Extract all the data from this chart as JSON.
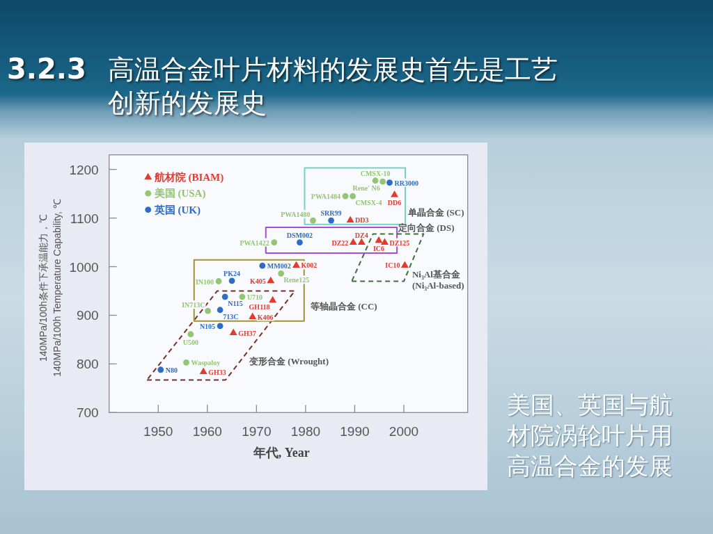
{
  "chart_data": {
    "type": "scatter",
    "title": "3.2.3 高温合金叶片材料的发展史首先是工艺创新的发展史",
    "xlabel": "年代, Year",
    "ylabel": "140MPa/100h条件下承温能力，℃\n140MPa/100h Temperature Capability, ℃",
    "xlim": [
      1940,
      2013
    ],
    "xticks": [
      1950,
      1960,
      1970,
      1980,
      1990,
      2000
    ],
    "ylim": [
      700,
      1230
    ],
    "yticks": [
      700,
      800,
      900,
      1000,
      1100,
      1200
    ],
    "legend": "top left",
    "series": [
      {
        "name": "航材院 (BIAM)",
        "color": "#e23b2e",
        "marker": "triangle",
        "x": [
          1959.2,
          1965.3,
          1969.2,
          1973.3,
          1972.9,
          1978.1,
          1989.7,
          1991.4,
          1994.9,
          1996.1,
          2000.2,
          1989.1,
          1998.1
        ],
        "values": [
          784,
          864,
          897,
          931,
          971,
          1003,
          1050,
          1050,
          1054,
          1050,
          1003,
          1096,
          1148
        ]
      },
      {
        "name": "美国 (USA)",
        "color": "#93c572",
        "marker": "circle",
        "x": [
          1955.7,
          1956.6,
          1960.1,
          1962.3,
          1967.1,
          1975.0,
          1973.6,
          1981.5,
          1988.1,
          1989.6,
          1994.2,
          1995.7
        ],
        "values": [
          803,
          861,
          909,
          970,
          938,
          986,
          1050,
          1095,
          1145,
          1145,
          1177,
          1175
        ]
      },
      {
        "name": "英国 (UK)",
        "color": "#2f6cc4",
        "marker": "circle",
        "x": [
          1950.5,
          1962.6,
          1962.6,
          1963.6,
          1965.0,
          1971.2,
          1978.8,
          1985.2,
          1997.1
        ],
        "values": [
          788,
          878,
          911,
          938,
          971,
          1002,
          1050,
          1095,
          1173
        ]
      }
    ],
    "annotations": [
      "变形合金 (Wrought)",
      "等轴晶合金 (CC)",
      "定向合金 (DS)",
      "单晶合金 (SC)",
      "Ni₃Al基合金 (Ni₃Al-based)",
      "美国、英国与航材院涡轮叶片用高温合金的发展",
      {
        "text": "GH33",
        "x": 1959.2,
        "y": 784
      },
      {
        "text": "GH37",
        "x": 1965.3,
        "y": 864
      },
      {
        "text": "K406",
        "x": 1969.2,
        "y": 897
      },
      {
        "text": "GH118",
        "x": 1973.3,
        "y": 931
      },
      {
        "text": "K405",
        "x": 1972.9,
        "y": 971
      },
      {
        "text": "K002",
        "x": 1978.1,
        "y": 1003
      },
      {
        "text": "DZ22",
        "x": 1989.7,
        "y": 1050
      },
      {
        "text": "DZ4",
        "x": 1991.4,
        "y": 1050
      },
      {
        "text": "IC6",
        "x": 1994.9,
        "y": 1054
      },
      {
        "text": "DZ125",
        "x": 1996.1,
        "y": 1050
      },
      {
        "text": "IC10",
        "x": 2000.2,
        "y": 1003
      },
      {
        "text": "DD3",
        "x": 1989.1,
        "y": 1096
      },
      {
        "text": "DD6",
        "x": 1998.1,
        "y": 1148
      },
      {
        "text": "Waspaloy",
        "x": 1955.7,
        "y": 803
      },
      {
        "text": "U500",
        "x": 1956.6,
        "y": 861
      },
      {
        "text": "IN713C",
        "x": 1960.1,
        "y": 909
      },
      {
        "text": "IN100",
        "x": 1962.3,
        "y": 970
      },
      {
        "text": "U710",
        "x": 1967.1,
        "y": 938
      },
      {
        "text": "Rene125",
        "x": 1975.0,
        "y": 986
      },
      {
        "text": "PWA1422",
        "x": 1973.6,
        "y": 1050
      },
      {
        "text": "PWA1480",
        "x": 1981.5,
        "y": 1095
      },
      {
        "text": "PWA1484",
        "x": 1988.1,
        "y": 1145
      },
      {
        "text": "CMSX-4",
        "x": 1989.6,
        "y": 1145
      },
      {
        "text": "CMSX-10",
        "x": 1994.2,
        "y": 1177
      },
      {
        "text": "Rene' N6",
        "x": 1995.7,
        "y": 1175
      },
      {
        "text": "N80",
        "x": 1950.5,
        "y": 788
      },
      {
        "text": "N105",
        "x": 1962.6,
        "y": 878
      },
      {
        "text": "713C",
        "x": 1962.6,
        "y": 911
      },
      {
        "text": "N115",
        "x": 1963.6,
        "y": 938
      },
      {
        "text": "PK24",
        "x": 1965.0,
        "y": 971
      },
      {
        "text": "MM002",
        "x": 1971.2,
        "y": 1002
      },
      {
        "text": "DSM002",
        "x": 1978.8,
        "y": 1050
      },
      {
        "text": "SRR99",
        "x": 1985.2,
        "y": 1095
      },
      {
        "text": "RR3000",
        "x": 1997.1,
        "y": 1173
      }
    ]
  }
}
